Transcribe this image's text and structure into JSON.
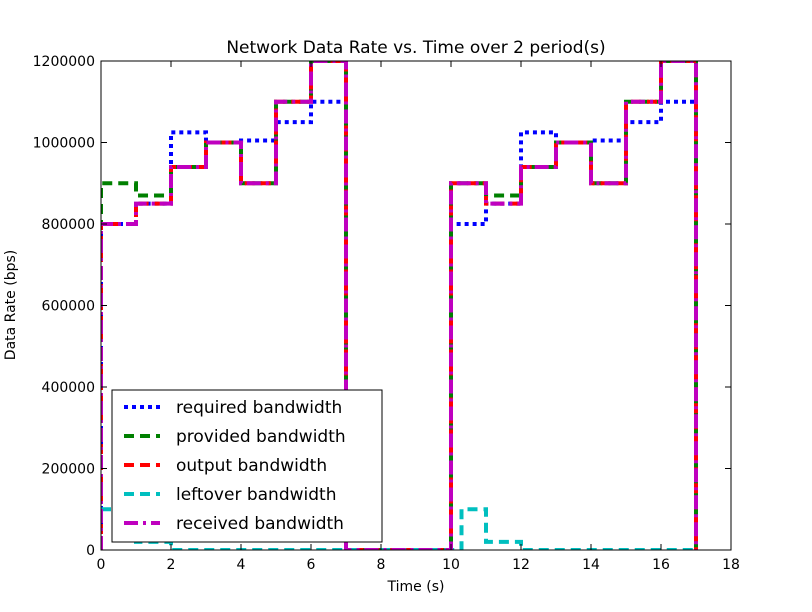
{
  "chart_data": {
    "type": "line",
    "title": "Network Data Rate vs. Time over 2 period(s)",
    "xlabel": "Time (s)",
    "ylabel": "Data Rate (bps)",
    "xlim": [
      0,
      18
    ],
    "ylim": [
      0,
      1200000
    ],
    "xticks": [
      0,
      2,
      4,
      6,
      8,
      10,
      12,
      14,
      16,
      18
    ],
    "yticks": [
      0,
      200000,
      400000,
      600000,
      800000,
      1000000,
      1200000
    ],
    "grid": false,
    "legend_position": "lower-left",
    "step": "post",
    "series": [
      {
        "name": "required bandwidth",
        "color": "#0000ff",
        "dash": "dotted",
        "x": [
          0,
          0,
          1,
          2,
          3,
          4,
          5,
          6,
          7,
          7,
          10,
          10,
          11,
          12,
          13,
          14,
          15,
          16,
          17,
          17
        ],
        "y": [
          0,
          800000,
          850000,
          1025000,
          1000000,
          1005000,
          1050000,
          1100000,
          1200000,
          0,
          0,
          800000,
          850000,
          1025000,
          1000000,
          1005000,
          1050000,
          1100000,
          1200000,
          0
        ]
      },
      {
        "name": "provided bandwidth",
        "color": "#008000",
        "dash": "dashed",
        "x": [
          0,
          0,
          1,
          2,
          3,
          4,
          5,
          6,
          7,
          7,
          10,
          10,
          11,
          12,
          13,
          14,
          15,
          16,
          17,
          17
        ],
        "y": [
          0,
          900000,
          870000,
          940000,
          1000000,
          900000,
          1100000,
          1200000,
          1200000,
          0,
          0,
          900000,
          870000,
          940000,
          1000000,
          900000,
          1100000,
          1200000,
          1200000,
          0
        ]
      },
      {
        "name": "output bandwidth",
        "color": "#ff0000",
        "dash": "dashed",
        "x": [
          0,
          0,
          1,
          2,
          3,
          4,
          5,
          6,
          7,
          7,
          10,
          10,
          11,
          12,
          13,
          14,
          15,
          16,
          17,
          17
        ],
        "y": [
          0,
          800000,
          850000,
          940000,
          1000000,
          900000,
          1100000,
          1200000,
          1200000,
          0,
          0,
          900000,
          850000,
          940000,
          1000000,
          900000,
          1100000,
          1200000,
          1200000,
          0
        ]
      },
      {
        "name": "leftover bandwidth",
        "color": "#00bfbf",
        "dash": "dashed",
        "x": [
          0,
          1,
          2,
          3,
          4,
          5,
          6,
          7,
          10,
          10.3,
          11,
          12,
          13,
          14,
          15,
          16,
          17
        ],
        "y": [
          100000,
          20000,
          0,
          0,
          0,
          0,
          0,
          0,
          0,
          100000,
          20000,
          0,
          0,
          0,
          0,
          0,
          0
        ]
      },
      {
        "name": "received bandwidth",
        "color": "#bf00bf",
        "dash": "dashdot",
        "x": [
          0,
          0,
          1,
          2,
          3,
          4,
          5,
          6,
          7,
          7,
          10,
          10,
          11,
          12,
          13,
          14,
          15,
          16,
          17,
          17
        ],
        "y": [
          0,
          800000,
          850000,
          940000,
          1000000,
          900000,
          1100000,
          1200000,
          1200000,
          0,
          0,
          900000,
          850000,
          940000,
          1000000,
          900000,
          1100000,
          1200000,
          1200000,
          0
        ]
      }
    ]
  }
}
